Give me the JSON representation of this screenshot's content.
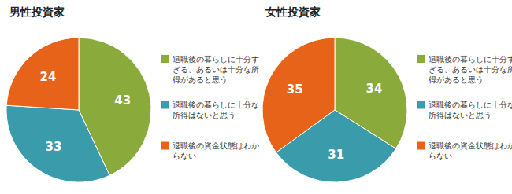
{
  "chart_data": [
    {
      "type": "pie",
      "title": "男性投資家",
      "categories": [
        "退職後の暮らしに十分すぎる、あるいは十分な所得があると思う",
        "退職後の暮らしに十分な所得はないと思う",
        "退職後の資金状態はわからない"
      ],
      "values": [
        43,
        33,
        24
      ],
      "colors": [
        "#8aab3c",
        "#3a9bab",
        "#e8631a"
      ],
      "data_labels": true
    },
    {
      "type": "pie",
      "title": "女性投資家",
      "categories": [
        "退職後の暮らしに十分すぎる、あるいは十分な所得があると思う",
        "退職後の暮らしに十分な所得はないと思う",
        "退職後の資金状態はわからない"
      ],
      "values": [
        34,
        31,
        35
      ],
      "colors": [
        "#8aab3c",
        "#3a9bab",
        "#e8631a"
      ],
      "data_labels": true
    }
  ]
}
